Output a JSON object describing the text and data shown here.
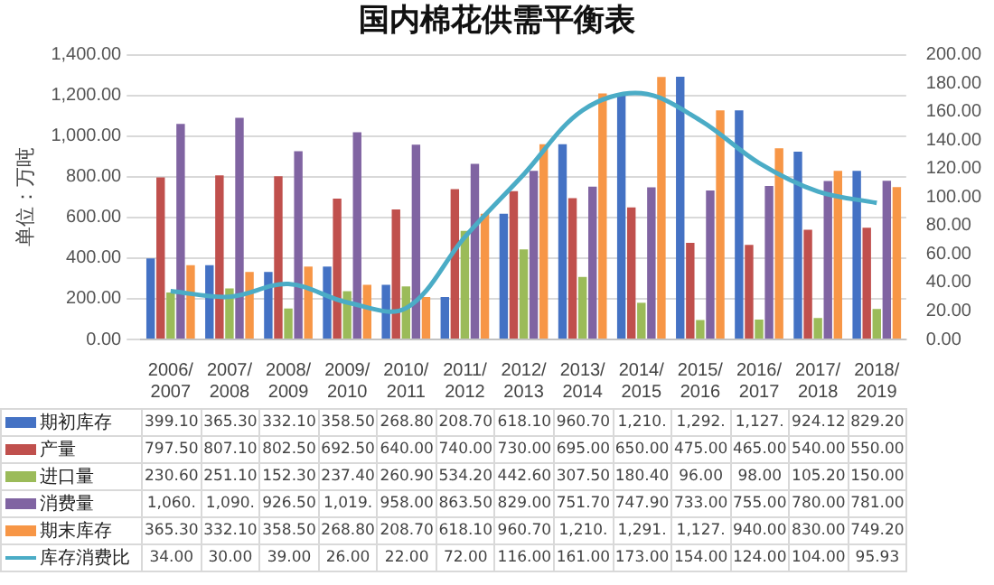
{
  "chart_data": {
    "type": "bar",
    "title": "国内棉花供需平衡表",
    "ylabel": "单位：万吨",
    "categories": [
      "2006/2007",
      "2007/2008",
      "2008/2009",
      "2009/2010",
      "2010/2011",
      "2011/2012",
      "2012/2013",
      "2013/2014",
      "2014/2015",
      "2015/2016",
      "2016/2017",
      "2017/2018",
      "2018/2019"
    ],
    "series": [
      {
        "name": "期初库存",
        "color": "#4472c4",
        "values": [
          399.1,
          365.3,
          332.1,
          358.5,
          268.8,
          208.7,
          618.1,
          960.7,
          1210,
          1292,
          1127,
          924.12,
          829.2
        ],
        "value_labels": [
          "399.10",
          "365.30",
          "332.10",
          "358.50",
          "268.80",
          "208.70",
          "618.10",
          "960.70",
          "1,210.",
          "1,292.",
          "1,127.",
          "924.12",
          "829.20"
        ]
      },
      {
        "name": "产量",
        "color": "#c0504d",
        "values": [
          797.5,
          807.1,
          802.5,
          692.5,
          640,
          740,
          730,
          695,
          650,
          475,
          465,
          540,
          550
        ],
        "value_labels": [
          "797.50",
          "807.10",
          "802.50",
          "692.50",
          "640.00",
          "740.00",
          "730.00",
          "695.00",
          "650.00",
          "475.00",
          "465.00",
          "540.00",
          "550.00"
        ]
      },
      {
        "name": "进口量",
        "color": "#9bbb59",
        "values": [
          230.6,
          251.1,
          152.3,
          237.4,
          260.9,
          534.2,
          442.6,
          307.5,
          180.4,
          96,
          98,
          105.2,
          150
        ],
        "value_labels": [
          "230.60",
          "251.10",
          "152.30",
          "237.40",
          "260.90",
          "534.20",
          "442.60",
          "307.50",
          "180.40",
          "96.00",
          "98.00",
          "105.20",
          "150.00"
        ]
      },
      {
        "name": "消费量",
        "color": "#8064a2",
        "values": [
          1060,
          1090,
          926.5,
          1019,
          958,
          863.5,
          829,
          751.7,
          747.9,
          733,
          755,
          780,
          781
        ],
        "value_labels": [
          "1,060.",
          "1,090.",
          "926.50",
          "1,019.",
          "958.00",
          "863.50",
          "829.00",
          "751.70",
          "747.90",
          "733.00",
          "755.00",
          "780.00",
          "781.00"
        ]
      },
      {
        "name": "期末库存",
        "color": "#f79646",
        "values": [
          365.3,
          332.1,
          358.5,
          268.8,
          208.7,
          618.1,
          960.7,
          1210,
          1291,
          1127,
          940,
          830,
          749.2
        ],
        "value_labels": [
          "365.30",
          "332.10",
          "358.50",
          "268.80",
          "208.70",
          "618.10",
          "960.70",
          "1,210.",
          "1,291.",
          "1,127.",
          "940.00",
          "830.00",
          "749.20"
        ]
      },
      {
        "name": "库存消费比",
        "type": "line",
        "axis": "y2",
        "color": "#4bacc6",
        "values": [
          34,
          30,
          39,
          26,
          22,
          72,
          116,
          161,
          173,
          154,
          124,
          104,
          95.93
        ],
        "value_labels": [
          "34.00",
          "30.00",
          "39.00",
          "26.00",
          "22.00",
          "72.00",
          "116.00",
          "161.00",
          "173.00",
          "154.00",
          "124.00",
          "104.00",
          "95.93"
        ]
      }
    ],
    "ylim": [
      0,
      1400
    ],
    "yticks": [
      {
        "value": 0,
        "label": "0.00"
      },
      {
        "value": 200,
        "label": "200.00"
      },
      {
        "value": 400,
        "label": "400.00"
      },
      {
        "value": 600,
        "label": "600.00"
      },
      {
        "value": 800,
        "label": "800.00"
      },
      {
        "value": 1000,
        "label": "1,000.00"
      },
      {
        "value": 1200,
        "label": "1,200.00"
      },
      {
        "value": 1400,
        "label": "1,400.00"
      }
    ],
    "y2lim": [
      0,
      200
    ],
    "y2ticks": [
      {
        "value": 0,
        "label": "0.00"
      },
      {
        "value": 20,
        "label": "20.00"
      },
      {
        "value": 40,
        "label": "40.00"
      },
      {
        "value": 60,
        "label": "60.00"
      },
      {
        "value": 80,
        "label": "80.00"
      },
      {
        "value": 100,
        "label": "100.00"
      },
      {
        "value": 120,
        "label": "120.00"
      },
      {
        "value": 140,
        "label": "140.00"
      },
      {
        "value": 160,
        "label": "160.00"
      },
      {
        "value": 180,
        "label": "180.00"
      },
      {
        "value": 200,
        "label": "200.00"
      }
    ],
    "grid": "y",
    "legend": "bottom",
    "marker": "none",
    "line_style": "solid"
  }
}
